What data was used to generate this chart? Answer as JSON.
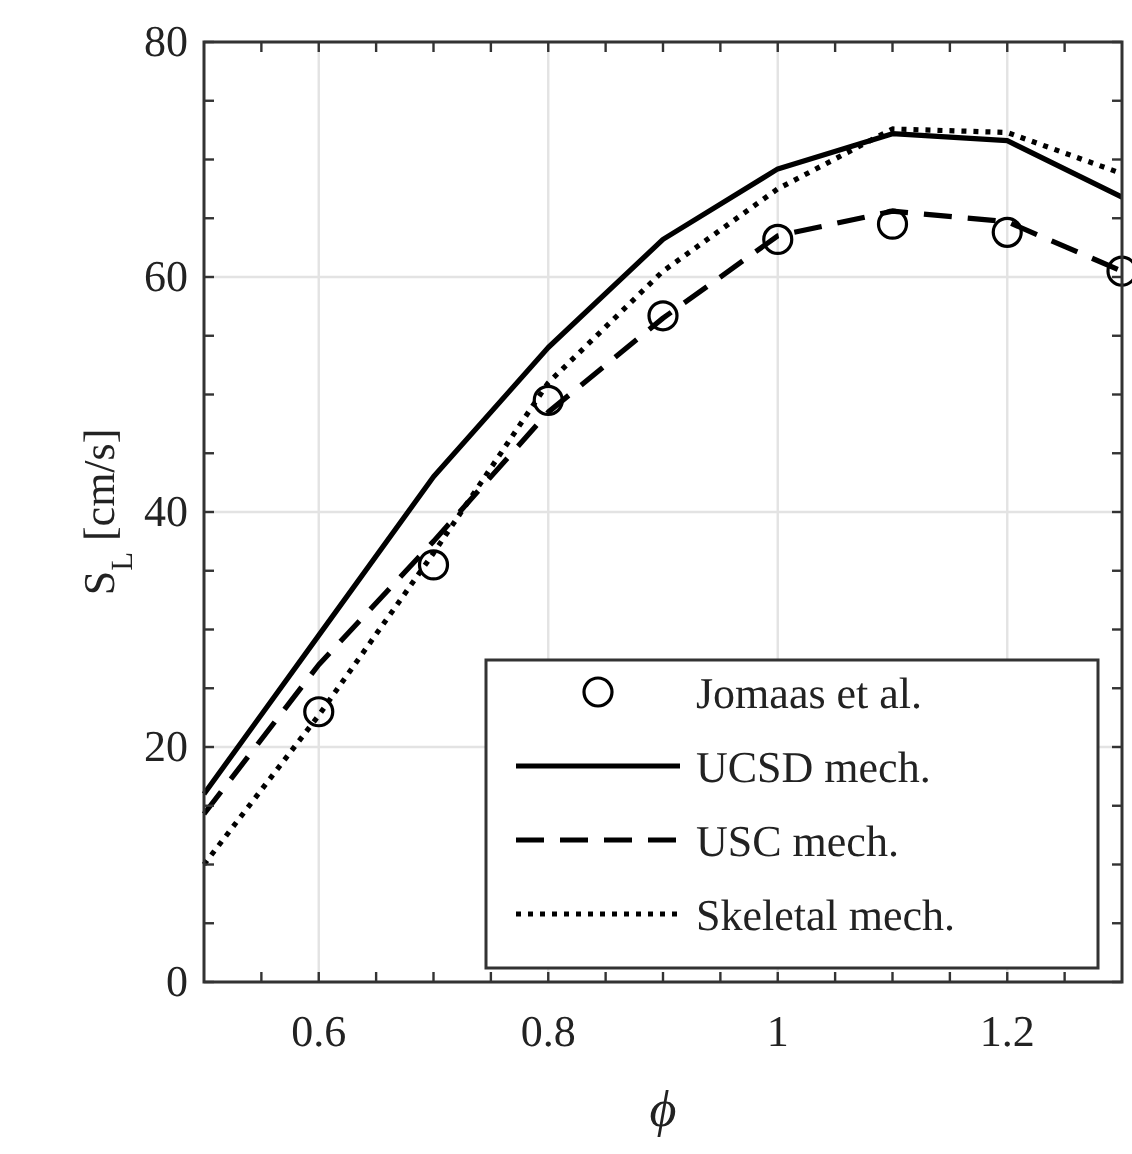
{
  "chart_data": {
    "type": "line",
    "xlabel": "ϕ",
    "ylabel": "S$_{L}$ [cm/s]",
    "xlim": [
      0.5,
      1.3
    ],
    "ylim": [
      0,
      80
    ],
    "xticks": [
      {
        "value": 0.55,
        "label": null
      },
      0.6,
      {
        "value": 0.65,
        "label": null
      },
      {
        "value": 0.7,
        "label": null
      },
      {
        "value": 0.75,
        "label": null
      },
      0.8,
      {
        "value": 0.85,
        "label": null
      },
      {
        "value": 0.9,
        "label": null
      },
      {
        "value": 0.95,
        "label": null
      },
      1,
      {
        "value": 1.05,
        "label": null
      },
      {
        "value": 1.1,
        "label": null
      },
      {
        "value": 1.15,
        "label": null
      },
      1.2,
      {
        "value": 1.25,
        "label": null
      }
    ],
    "yticks": [
      0,
      {
        "value": 5,
        "label": null
      },
      {
        "value": 10,
        "label": null
      },
      {
        "value": 15,
        "label": null
      },
      20,
      {
        "value": 25,
        "label": null
      },
      {
        "value": 30,
        "label": null
      },
      {
        "value": 35,
        "label": null
      },
      40,
      {
        "value": 45,
        "label": null
      },
      {
        "value": 50,
        "label": null
      },
      {
        "value": 55,
        "label": null
      },
      60,
      {
        "value": 65,
        "label": null
      },
      {
        "value": 70,
        "label": null
      },
      {
        "value": 75,
        "label": null
      },
      80
    ],
    "grid": true,
    "legend": "bottom right",
    "series": [
      {
        "name": "Jomaas et al.",
        "type": "scatter",
        "marker": "circle",
        "color": "#000000",
        "x": [
          0.6,
          0.7,
          0.8,
          0.9,
          1.0,
          1.1,
          1.2,
          1.3
        ],
        "values": [
          23,
          35.5,
          49.5,
          56.7,
          63.2,
          64.5,
          63.8,
          60.5
        ]
      },
      {
        "name": "UCSD mech.",
        "line_style": "solid",
        "color": "#000000",
        "x": [
          0.5,
          0.6,
          0.7,
          0.8,
          0.9,
          1.0,
          1.1,
          1.2,
          1.3
        ],
        "values": [
          16,
          29.5,
          43,
          54,
          63.2,
          69.2,
          72.2,
          71.6,
          66.8
        ]
      },
      {
        "name": "USC mech.",
        "line_style": "dashed",
        "color": "#000000",
        "x": [
          0.5,
          0.6,
          0.7,
          0.8,
          0.9,
          1.0,
          1.1,
          1.2,
          1.3
        ],
        "values": [
          14.3,
          27,
          37.5,
          48.5,
          56.5,
          63.5,
          65.6,
          64.7,
          60.5
        ]
      },
      {
        "name": "Skeletal mech.",
        "line_style": "dotted",
        "color": "#000000",
        "x": [
          0.5,
          0.6,
          0.7,
          0.8,
          0.9,
          1.0,
          1.1,
          1.2,
          1.3
        ],
        "values": [
          10,
          22.7,
          36.5,
          51,
          60.5,
          67.5,
          72.6,
          72.3,
          68.8
        ]
      }
    ]
  }
}
